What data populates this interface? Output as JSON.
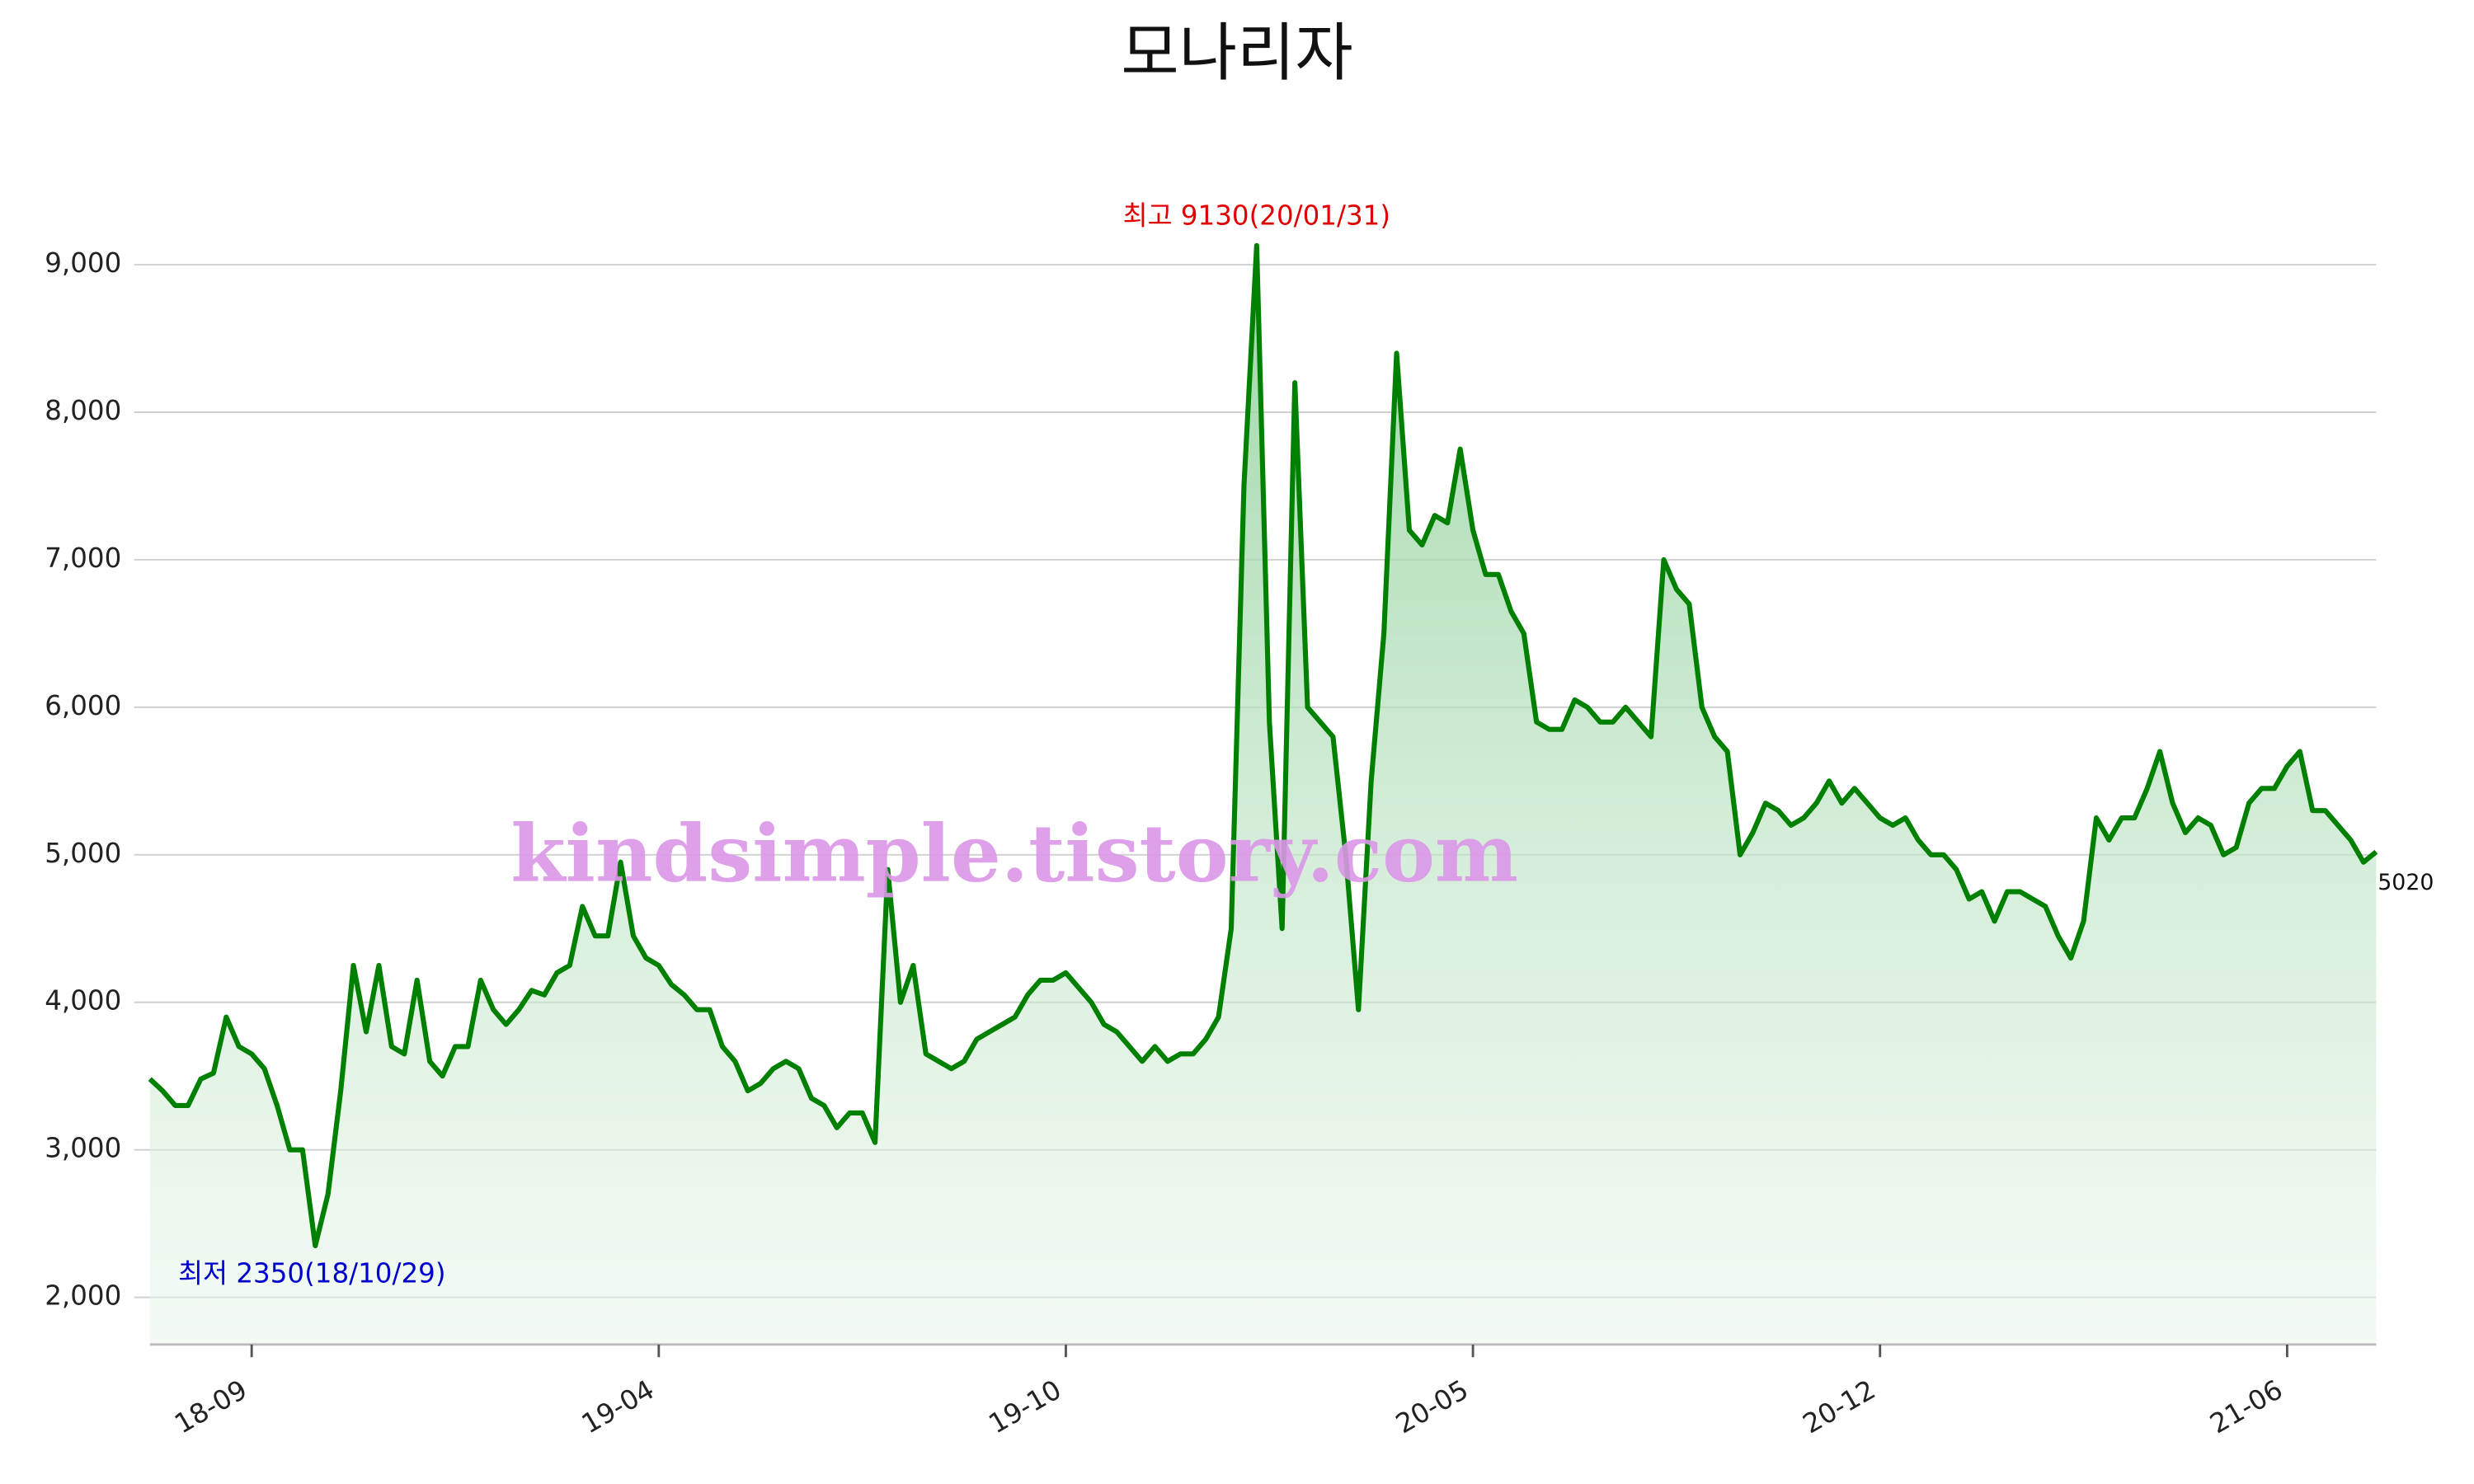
{
  "chart_data": {
    "type": "area-line",
    "title": "모나리자",
    "watermark": "kindsimple.tistory.com",
    "annotations": [
      {
        "text": "최고 9130(20/01/31)",
        "color": "#e00000",
        "at": "max"
      },
      {
        "text": "최저 2350(18/10/29)",
        "color": "#0000cc",
        "at": "min"
      }
    ],
    "categories": [
      null,
      null,
      null,
      null,
      null,
      null,
      null,
      null,
      "18-09",
      null,
      null,
      null,
      null,
      null,
      null,
      null,
      null,
      null,
      null,
      null,
      null,
      null,
      null,
      null,
      null,
      null,
      null,
      null,
      null,
      null,
      null,
      null,
      null,
      null,
      null,
      null,
      null,
      null,
      null,
      null,
      "19-04",
      null,
      null,
      null,
      null,
      null,
      null,
      null,
      null,
      null,
      null,
      null,
      null,
      null,
      null,
      null,
      null,
      null,
      null,
      null,
      null,
      null,
      null,
      null,
      null,
      null,
      null,
      null,
      null,
      null,
      null,
      null,
      "19-10",
      null,
      null,
      null,
      null,
      null,
      null,
      null,
      null,
      null,
      null,
      null,
      null,
      null,
      null,
      null,
      null,
      null,
      null,
      null,
      null,
      null,
      null,
      null,
      null,
      null,
      null,
      null,
      null,
      null,
      null,
      null,
      "20-05",
      null,
      null,
      null,
      null,
      null,
      null,
      null,
      null,
      null,
      null,
      null,
      null,
      null,
      null,
      null,
      null,
      null,
      null,
      null,
      null,
      null,
      null,
      null,
      null,
      null,
      null,
      null,
      null,
      null,
      null,
      null,
      "20-12",
      null,
      null,
      null,
      null,
      null,
      null,
      null,
      null,
      null,
      null,
      null,
      null,
      null,
      null,
      null,
      null,
      null,
      null,
      null,
      null,
      null,
      null,
      null,
      null,
      null,
      null,
      null,
      null,
      null,
      null,
      null,
      "21-06",
      null,
      null,
      null,
      null,
      null,
      null,
      null
    ],
    "series": [
      {
        "color": "#008000",
        "values": [
          3480,
          3400,
          3300,
          3300,
          3480,
          3520,
          3900,
          3700,
          3650,
          3550,
          3300,
          3000,
          3000,
          2350,
          2700,
          3400,
          4250,
          3800,
          4250,
          3700,
          3650,
          4150,
          3600,
          3500,
          3700,
          3700,
          4150,
          3950,
          3850,
          3950,
          4080,
          4050,
          4200,
          4250,
          4650,
          4450,
          4450,
          4950,
          4450,
          4300,
          4250,
          4120,
          4050,
          3950,
          3950,
          3700,
          3600,
          3400,
          3450,
          3550,
          3600,
          3550,
          3350,
          3300,
          3150,
          3250,
          3250,
          3050,
          4900,
          4000,
          4250,
          3650,
          3600,
          3550,
          3600,
          3750,
          3800,
          3850,
          3900,
          4050,
          4150,
          4150,
          4200,
          4100,
          4000,
          3850,
          3800,
          3700,
          3600,
          3700,
          3600,
          3650,
          3650,
          3750,
          3900,
          4500,
          7500,
          9130,
          5900,
          4500,
          8200,
          6000,
          5900,
          5800,
          5000,
          3950,
          5500,
          6500,
          8400,
          7200,
          7100,
          7300,
          7250,
          7750,
          7200,
          6900,
          6900,
          6650,
          6500,
          5900,
          5850,
          5850,
          6050,
          6000,
          5900,
          5900,
          6000,
          5900,
          5800,
          7000,
          6800,
          6700,
          6000,
          5800,
          5700,
          5000,
          5150,
          5350,
          5300,
          5200,
          5250,
          5350,
          5500,
          5350,
          5450,
          5350,
          5250,
          5200,
          5250,
          5100,
          5000,
          5000,
          4900,
          4700,
          4750,
          4550,
          4750,
          4750,
          4700,
          4650,
          4450,
          4300,
          4550,
          5250,
          5100,
          5250,
          5250,
          5450,
          5700,
          5350,
          5150,
          5250,
          5200,
          5000,
          5050,
          5350,
          5450,
          5450,
          5600,
          5700,
          5300,
          5300,
          5200,
          5100,
          4950,
          5020
        ]
      }
    ],
    "ylim": [
      1680,
      9400
    ],
    "yticks": [
      {
        "value": 2000,
        "label": "2,000"
      },
      {
        "value": 3000,
        "label": "3,000"
      },
      {
        "value": 4000,
        "label": "4,000"
      },
      {
        "value": 5000,
        "label": "5,000"
      },
      {
        "value": 6000,
        "label": "6,000"
      },
      {
        "value": 7000,
        "label": "7,000"
      },
      {
        "value": 8000,
        "label": "8,000"
      },
      {
        "value": 9000,
        "label": "9,000"
      }
    ],
    "grid": true
  }
}
